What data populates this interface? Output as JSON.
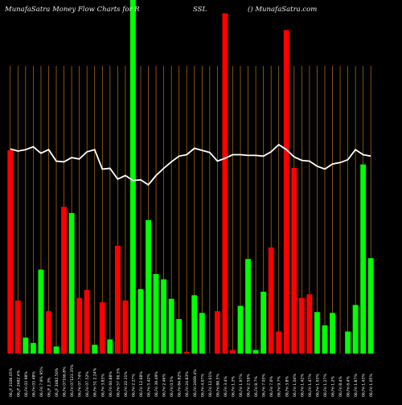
{
  "chart_data": {
    "type": "bar",
    "title_left": "MunafaSatra  Money Flow  Charts for R",
    "title_mid": "SSL",
    "title_right": "() MunafaSatra.com",
    "colors": {
      "up": "#00ff00",
      "down": "#ff0000",
      "grid": "#b8731e",
      "line": "#ffffff",
      "background": "#000000"
    },
    "categories": [
      "06,JF 2106.05%",
      "06,JF 2482.4%",
      "06,Fri 03 98%",
      "06,Fri 03 48%",
      "06,Fri 7.9% 95%",
      "06,JF 2.3%",
      "06,JF 2482.50%",
      "06,Fri 07166.8%",
      "06,Fri 07123.35%",
      "06,Fri 07.74%",
      "06,Fri 07.52%",
      "06,Fri 51 2.24%",
      "06,Fri 3.83%",
      "06,Fri 60.88%",
      "06,Fri 57 96.5%",
      "06,Fri 22.31%",
      "06,Fri 2.27%",
      "06,Fri 12.68%",
      "06,Fri 5.42%",
      "06,Fri 39.49%",
      "06,Fri 2.46%",
      "06,Fri 0.5%",
      "06,Fri 84.82%",
      "06,Fri 24.83%",
      "06,Fri 2469.4%",
      "06,Fri 4.07%",
      "06,Fri 12.01%",
      "06,Fri 88.5%",
      "06,Fri 3.4%",
      "06,Fri 1.3%",
      "06,Fri 1.97%",
      "06,Fri 2.59%",
      "06,Fri 8.7%",
      "06,Fri 7.03%",
      "06,Fri 7.0%",
      "06,Fri 9.7%",
      "06,Fri 3.8%",
      "06,Fri 1.04%",
      "06,Fri 1.42%",
      "06,Fri 1.47%",
      "06,Fri 1.03%",
      "06,Fri 1.27%",
      "06,Fri 1.2%",
      "06,Fri 8.4%",
      "06,Fri 6.4%",
      "06,Fri 1.87%",
      "06,Fri 1.43%",
      "06,Fri 1.05%"
    ],
    "values": [
      230,
      60,
      18,
      12,
      95,
      48,
      8,
      166,
      159,
      63,
      72,
      10,
      58,
      16,
      122,
      60,
      400,
      73,
      151,
      90,
      84,
      62,
      39,
      2,
      66,
      46,
      0,
      48,
      385,
      4,
      54,
      107,
      4,
      70,
      120,
      25,
      366,
      210,
      63,
      67,
      47,
      32,
      46,
      0,
      25,
      55,
      214,
      108
    ],
    "directions": [
      "down",
      "down",
      "up",
      "up",
      "up",
      "down",
      "up",
      "down",
      "up",
      "down",
      "down",
      "up",
      "down",
      "up",
      "down",
      "down",
      "up",
      "up",
      "up",
      "up",
      "up",
      "up",
      "up",
      "down",
      "up",
      "up",
      "up",
      "down",
      "down",
      "down",
      "up",
      "up",
      "up",
      "up",
      "down",
      "down",
      "down",
      "down",
      "down",
      "down",
      "up",
      "up",
      "up",
      "up",
      "up",
      "up",
      "up",
      "up"
    ],
    "line": [
      0.235,
      0.238,
      0.236,
      0.232,
      0.241,
      0.236,
      0.252,
      0.253,
      0.247,
      0.249,
      0.239,
      0.236,
      0.263,
      0.262,
      0.277,
      0.272,
      0.279,
      0.278,
      0.285,
      0.272,
      0.262,
      0.253,
      0.245,
      0.243,
      0.234,
      0.237,
      0.24,
      0.252,
      0.248,
      0.243,
      0.243,
      0.244,
      0.244,
      0.245,
      0.239,
      0.229,
      0.236,
      0.246,
      0.251,
      0.252,
      0.259,
      0.263,
      0.256,
      0.254,
      0.25,
      0.236,
      0.243,
      0.245
    ],
    "ylim": [
      0,
      400
    ],
    "grid": true
  }
}
